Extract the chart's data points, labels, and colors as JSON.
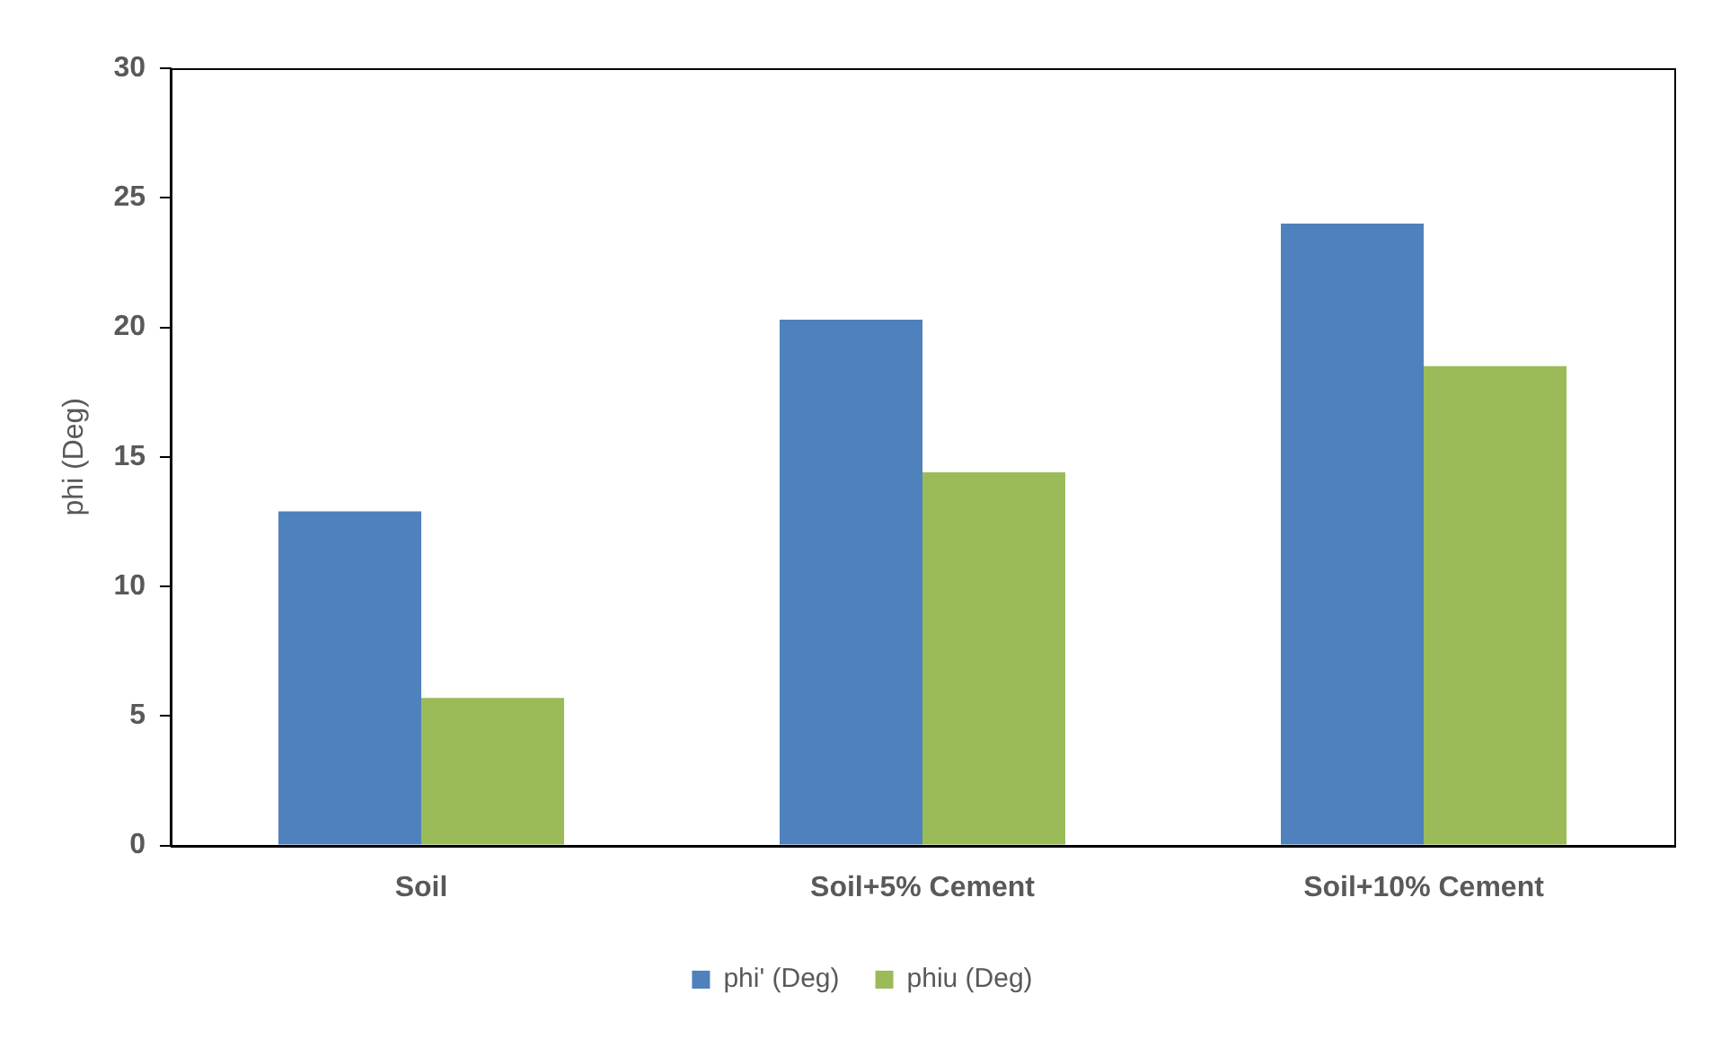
{
  "chart_data": {
    "type": "bar",
    "ylabel": "phi (Deg)",
    "categories": [
      "Soil",
      "Soil+5% Cement",
      "Soil+10% Cement"
    ],
    "series": [
      {
        "name": "phi' (Deg)",
        "color": "#4f81bd",
        "values": [
          12.9,
          20.3,
          24.0
        ]
      },
      {
        "name": "phiu (Deg)",
        "color": "#9bbb59",
        "values": [
          5.7,
          14.4,
          18.5
        ]
      }
    ],
    "ylim": [
      0,
      30
    ],
    "yticks": [
      0,
      5,
      10,
      15,
      20,
      25,
      30
    ],
    "grid": false,
    "legend": "bottom"
  }
}
